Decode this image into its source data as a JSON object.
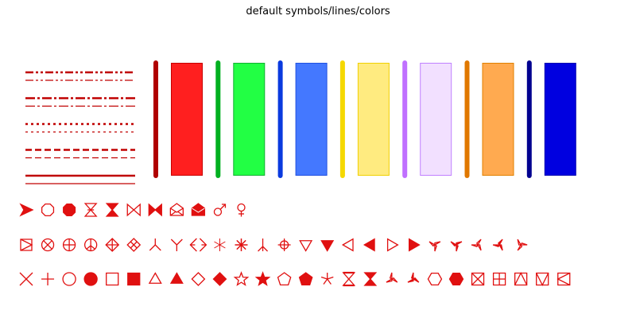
{
  "title": "default symbols/lines/colors",
  "symbol_color": "#e01010",
  "line_color": "#c00000",
  "line_styles": [
    "dash-dot-dot",
    "dash-dot",
    "dotted",
    "dashed",
    "solid"
  ],
  "color_swatches": [
    {
      "name": "red",
      "bar": "#b00000",
      "fill": "#ff1f1f",
      "edge": "#c80000"
    },
    {
      "name": "green",
      "bar": "#00b020",
      "fill": "#22ff44",
      "edge": "#10b030"
    },
    {
      "name": "blue",
      "bar": "#0a3adf",
      "fill": "#4478ff",
      "edge": "#2050e0"
    },
    {
      "name": "yellow",
      "bar": "#f5d800",
      "fill": "#ffeb80",
      "edge": "#f0d000"
    },
    {
      "name": "purple",
      "bar": "#c070ff",
      "fill": "#f2e0ff",
      "edge": "#c080ff"
    },
    {
      "name": "orange",
      "bar": "#e07800",
      "fill": "#ffaa50",
      "edge": "#e08000"
    },
    {
      "name": "navy",
      "bar": "#000090",
      "fill": "#0000e0",
      "edge": "#0000b0"
    }
  ],
  "symbol_rows": [
    [
      "arrowhead-right",
      "octagon-open",
      "octagon-filled",
      "hourglass-crossed-open",
      "hourglass-filled",
      "bowtie-open",
      "bowtie-filled",
      "envelope-open",
      "envelope-filled",
      "male-symbol",
      "female-symbol"
    ],
    [
      "square-diagonal",
      "circle-x",
      "circle-plus",
      "peace-symbol",
      "diamond-plus",
      "diamond-x",
      "y-inverted",
      "y-upright",
      "double-angle",
      "asterisk-thin",
      "asterisk-bold",
      "tripod-up",
      "circle-plus-diamond",
      "triangle-down-open",
      "triangle-down-filled",
      "triangle-left-open",
      "triangle-left-filled",
      "triangle-right-open",
      "triangle-right-filled",
      "concave-triangle-down-open",
      "concave-triangle-down-filled",
      "concave-triangle-left-open",
      "concave-triangle-left-filled",
      "concave-triangle-right-open"
    ],
    [
      "x-cross",
      "plus",
      "circle-open",
      "circle-filled",
      "square-open",
      "square-filled",
      "triangle-up-open",
      "triangle-up-filled",
      "diamond-open",
      "diamond-filled",
      "star-open",
      "star-filled",
      "pentagon-open",
      "pentagon-filled",
      "asterisk-star",
      "hourglass-open",
      "hourglass-filled-2",
      "concave-triangle-up-open",
      "concave-triangle-up-filled",
      "hexagon-open",
      "hexagon-filled",
      "square-x",
      "square-grid",
      "square-triangle-up",
      "square-triangle-down",
      "square-triangle-left"
    ]
  ]
}
